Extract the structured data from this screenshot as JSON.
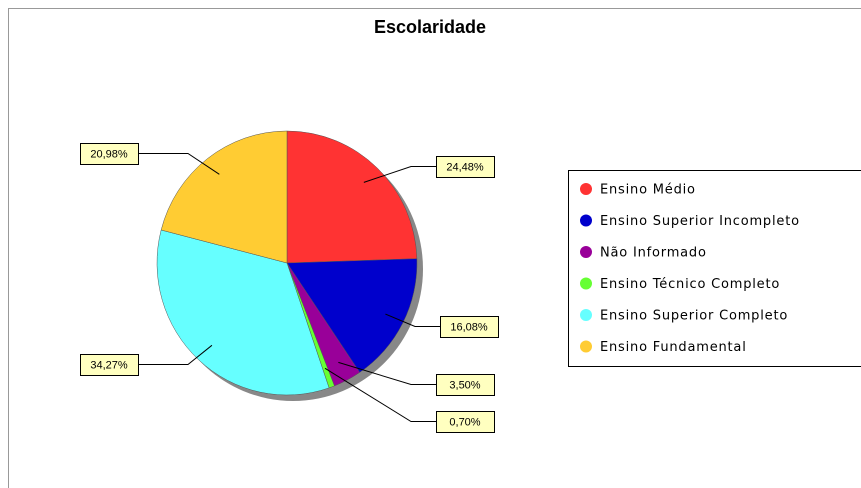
{
  "chart_data": {
    "type": "pie",
    "title": "Escolaridade",
    "categories": [
      "Ensino Médio",
      "Ensino Superior Incompleto",
      "Não Informado",
      "Ensino Técnico Completo",
      "Ensino Superior Completo",
      "Ensino Fundamental"
    ],
    "values": [
      24.48,
      16.08,
      3.5,
      0.7,
      34.27,
      20.98
    ],
    "value_labels": [
      "24,48%",
      "16,08%",
      "3,50%",
      "0,70%",
      "34,27%",
      "20,98%"
    ],
    "colors": [
      "#ff3333",
      "#0000cc",
      "#990099",
      "#66ff33",
      "#66ffff",
      "#ffcc33"
    ]
  }
}
